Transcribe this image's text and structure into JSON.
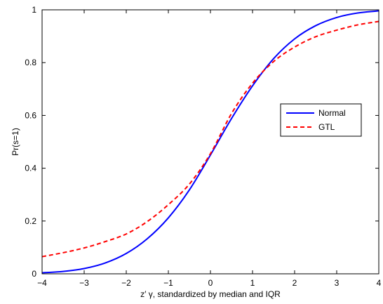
{
  "chart_data": {
    "type": "line",
    "xlabel": "z′ γ, standardized by median and IQR",
    "ylabel": "Pr(s=1)",
    "xlim": [
      -4,
      4
    ],
    "ylim": [
      0,
      1
    ],
    "grid": false,
    "legend_position": "right",
    "x_ticks": [
      "−4",
      "−3",
      "−2",
      "−1",
      "0",
      "1",
      "2",
      "3",
      "4"
    ],
    "y_ticks": [
      "0",
      "0.2",
      "0.4",
      "0.6",
      "0.8",
      "1"
    ],
    "series": [
      {
        "name": "Normal",
        "color": "#0000ff",
        "style": "solid",
        "x": [
          -4,
          -3.5,
          -3,
          -2.5,
          -2,
          -1.5,
          -1,
          -0.5,
          0,
          0.5,
          1,
          1.5,
          2,
          2.5,
          3,
          3.5,
          4
        ],
        "y": [
          0.004,
          0.009,
          0.02,
          0.041,
          0.077,
          0.133,
          0.212,
          0.318,
          0.45,
          0.588,
          0.712,
          0.815,
          0.89,
          0.94,
          0.971,
          0.988,
          0.996
        ]
      },
      {
        "name": "GTL",
        "color": "#ff0000",
        "style": "dashed",
        "x": [
          -4,
          -3.5,
          -3,
          -2.5,
          -2,
          -1.5,
          -1,
          -0.5,
          0,
          0.5,
          1,
          1.5,
          2,
          2.5,
          3,
          3.5,
          4
        ],
        "y": [
          0.065,
          0.08,
          0.098,
          0.122,
          0.151,
          0.198,
          0.262,
          0.34,
          0.455,
          0.607,
          0.722,
          0.804,
          0.859,
          0.898,
          0.923,
          0.943,
          0.956
        ]
      }
    ]
  }
}
